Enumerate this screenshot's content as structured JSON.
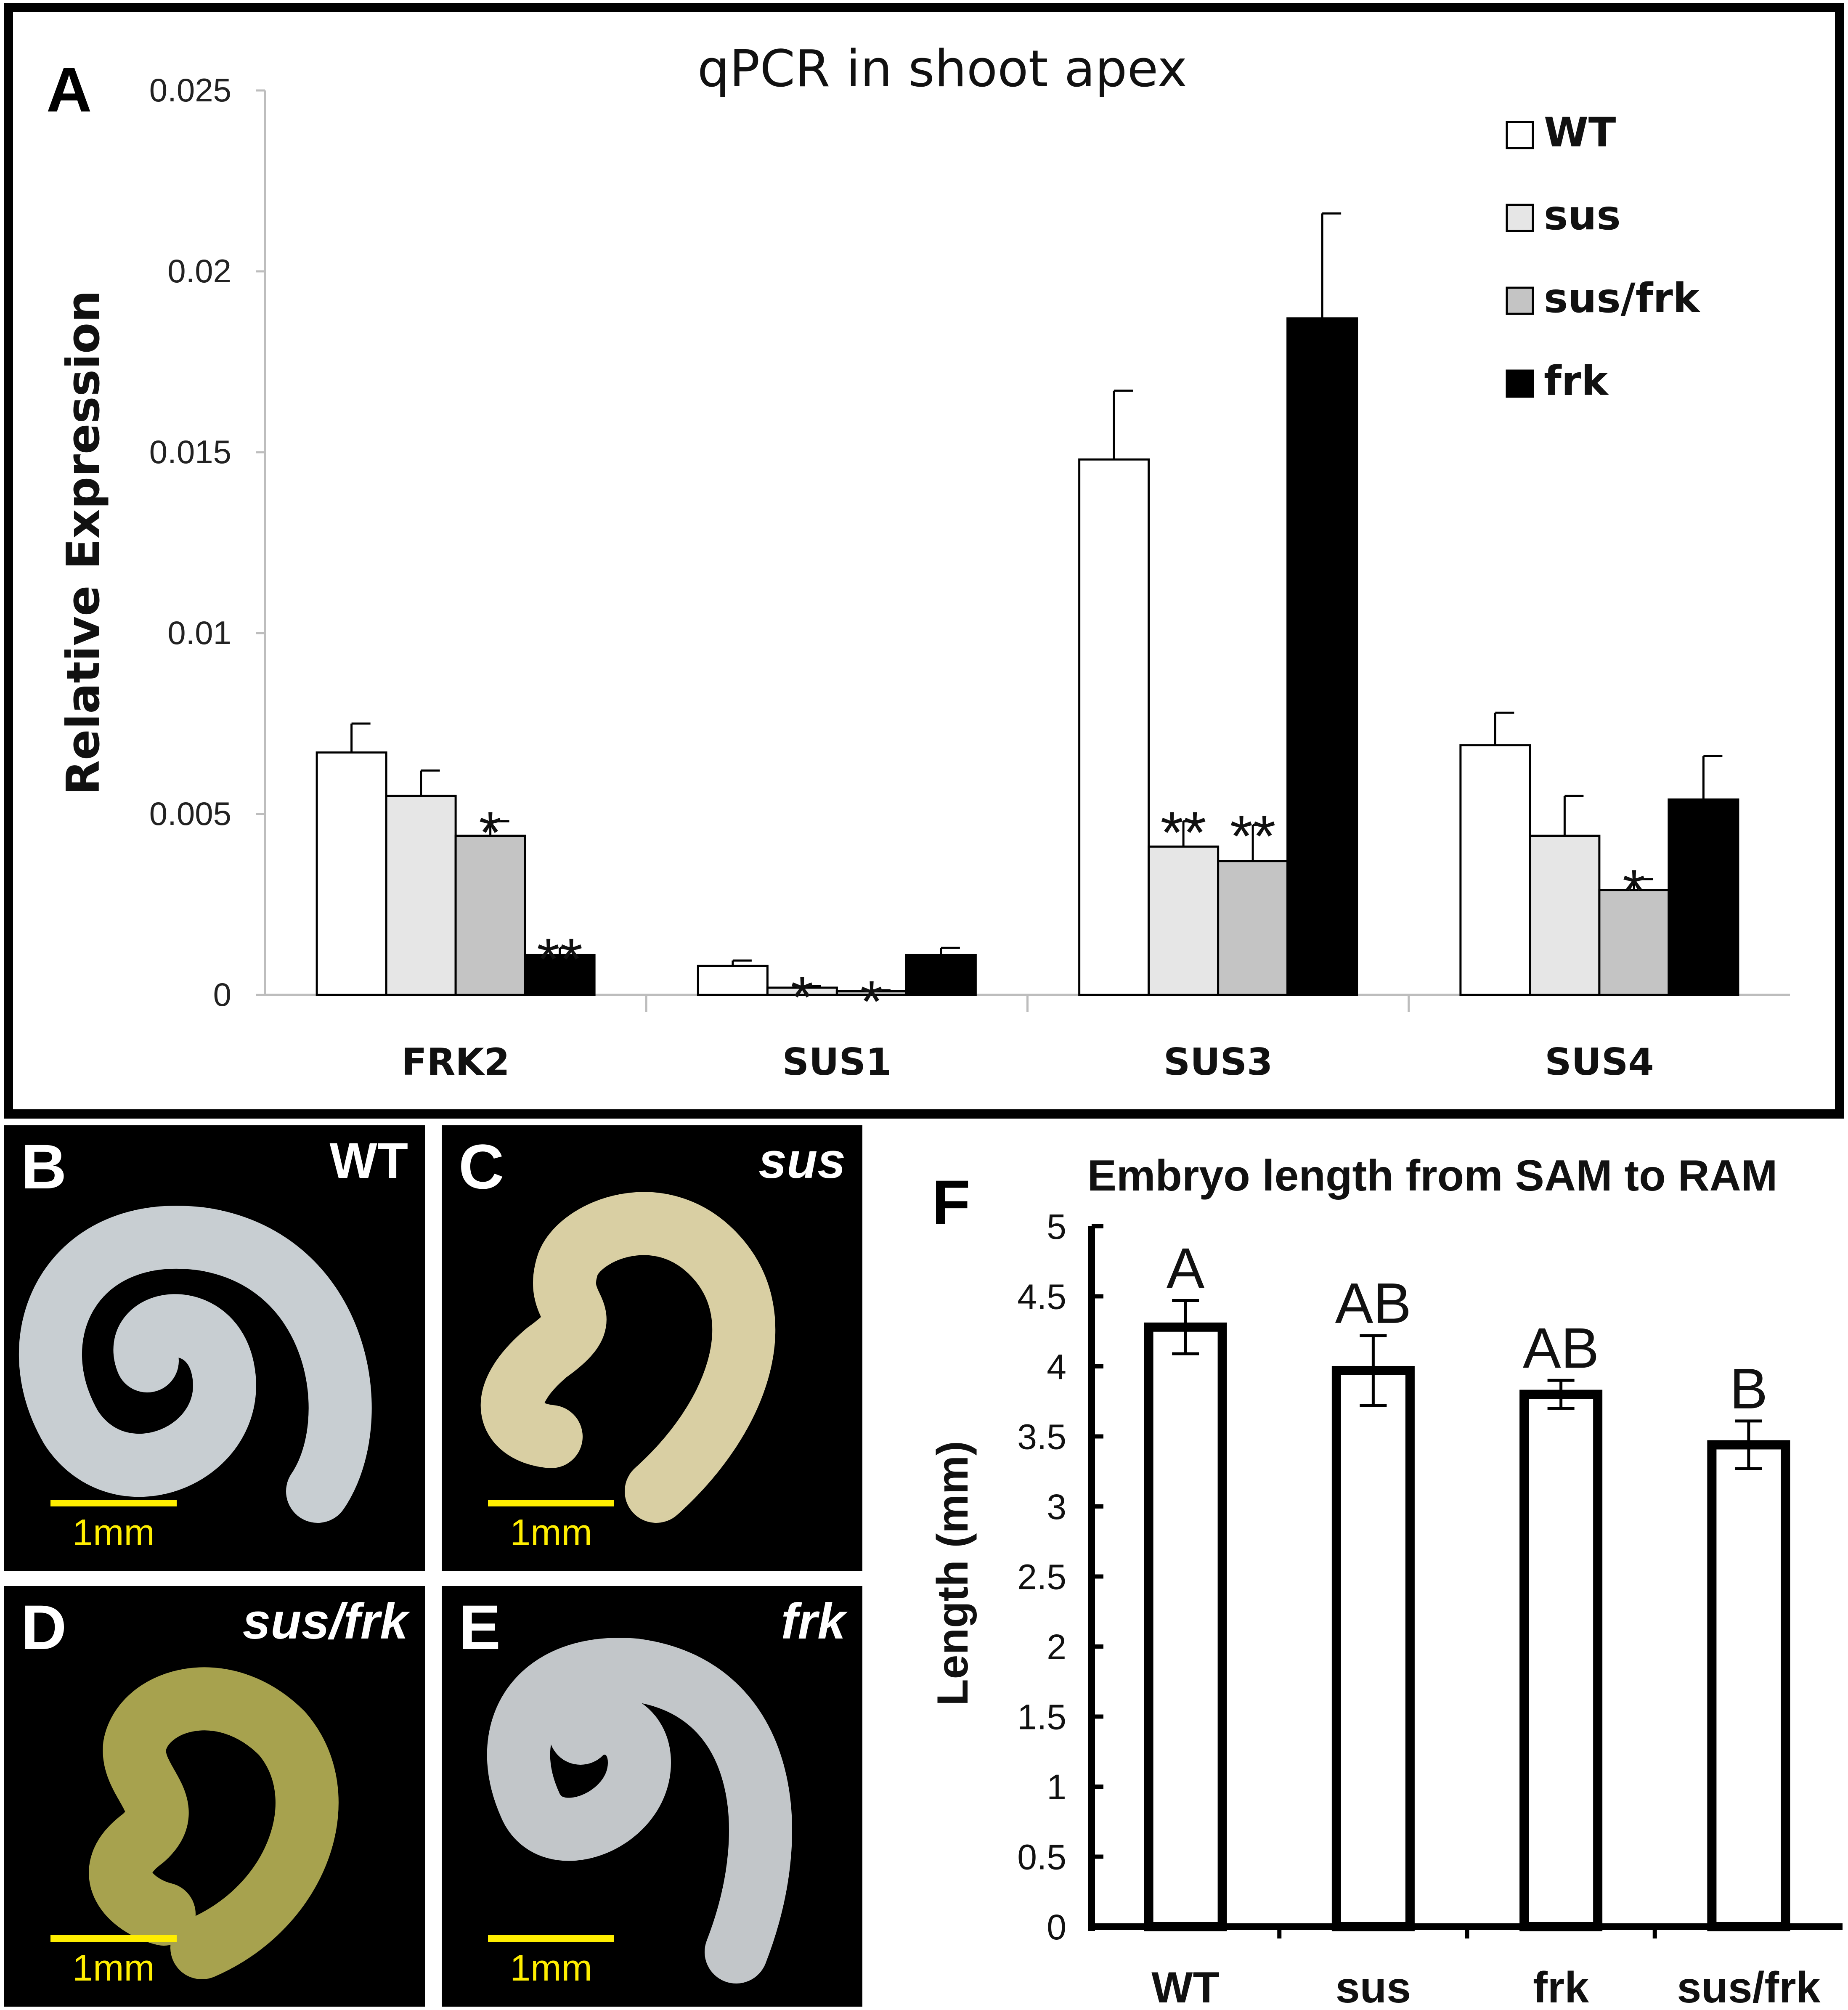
{
  "panelA": {
    "letter": "A",
    "title": "qPCR in shoot apex",
    "ylabel": "Relative Expression",
    "ytick_labels": [
      "0",
      "0.005",
      "0.01",
      "0.015",
      "0.02",
      "0.025"
    ]
  },
  "panelF": {
    "letter": "F",
    "title": "Embryo length from SAM to RAM",
    "ylabel": "Length (mm)",
    "ytick_labels": [
      "0",
      "0.5",
      "1",
      "1.5",
      "2",
      "2.5",
      "3",
      "3.5",
      "4",
      "4.5",
      "5"
    ]
  },
  "photos": [
    {
      "letter": "B",
      "label": "WT",
      "scale": "1mm",
      "fill": "#c8ced2"
    },
    {
      "letter": "C",
      "label": "sus",
      "scale": "1mm",
      "fill": "#d9cfa3"
    },
    {
      "letter": "D",
      "label": "sus/frk",
      "scale": "1mm",
      "fill": "#a7a24e"
    },
    {
      "letter": "E",
      "label": "frk",
      "scale": "1mm",
      "fill": "#c2c6c9"
    }
  ],
  "chart_data": [
    {
      "type": "bar",
      "title": "qPCR in shoot apex",
      "xlabel": "",
      "ylabel": "Relative Expression",
      "ylim": [
        0,
        0.025
      ],
      "categories": [
        "FRK2",
        "SUS1",
        "SUS3",
        "SUS4"
      ],
      "legend_position": "top-right",
      "series": [
        {
          "name": "WT",
          "color": "#ffffff",
          "values": [
            0.0067,
            0.0008,
            0.0148,
            0.0069
          ],
          "errors": [
            0.0008,
            0.00015,
            0.0019,
            0.0009
          ],
          "sig": [
            "",
            "",
            "",
            ""
          ]
        },
        {
          "name": "sus",
          "color": "#e6e6e6",
          "values": [
            0.0055,
            0.0002,
            0.0041,
            0.0044
          ],
          "errors": [
            0.0007,
            5e-05,
            0.0007,
            0.0011
          ],
          "sig": [
            "",
            "*",
            "**",
            ""
          ]
        },
        {
          "name": "sus/frk",
          "color": "#c4c4c4",
          "values": [
            0.0044,
            0.0001,
            0.0037,
            0.0029
          ],
          "errors": [
            0.0004,
            3e-05,
            0.001,
            0.0003
          ],
          "sig": [
            "*",
            "*",
            "**",
            "*"
          ]
        },
        {
          "name": "frk",
          "color": "#000000",
          "values": [
            0.0011,
            0.0011,
            0.0187,
            0.0054
          ],
          "errors": [
            0.0002,
            0.0002,
            0.0029,
            0.0012
          ],
          "sig": [
            "**",
            "",
            "",
            ""
          ]
        }
      ]
    },
    {
      "type": "bar",
      "title": "Embryo length from SAM to RAM",
      "xlabel": "",
      "ylabel": "Length (mm)",
      "ylim": [
        0,
        5
      ],
      "categories": [
        "WT",
        "sus",
        "frk",
        "sus/frk"
      ],
      "values": [
        4.28,
        3.97,
        3.8,
        3.44
      ],
      "errors": [
        0.19,
        0.25,
        0.1,
        0.17
      ],
      "group_labels": [
        "A",
        "AB",
        "AB",
        "B"
      ]
    }
  ]
}
